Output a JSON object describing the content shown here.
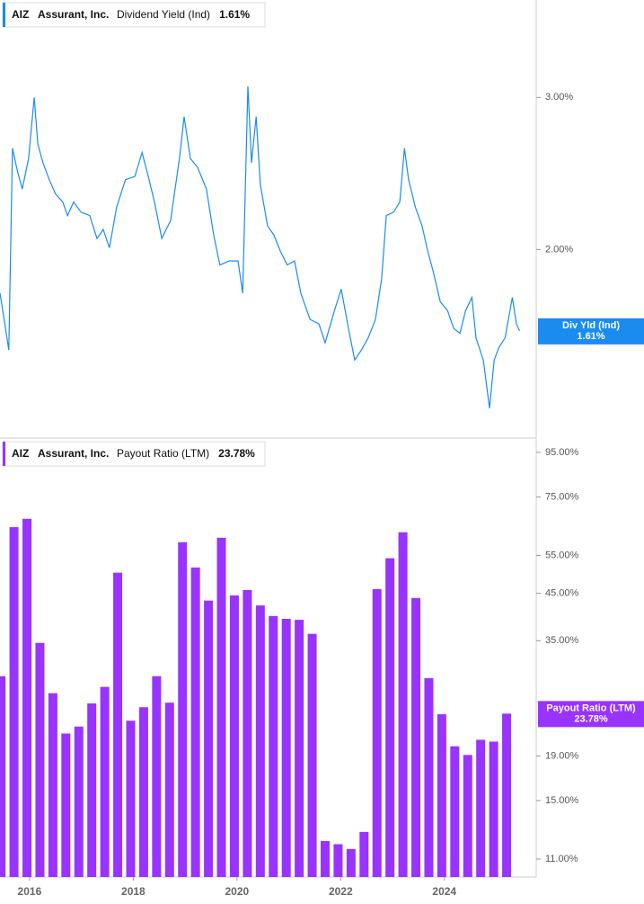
{
  "chart_data": [
    {
      "type": "line",
      "ticker": "AIZ",
      "company": "Assurant, Inc.",
      "current_label": "1.61%",
      "ylog": true,
      "ylim": [
        1.21,
        3.89
      ],
      "yticks": [
        {
          "value": 3,
          "label": "3.00%"
        },
        {
          "value": 2,
          "label": "2.00%"
        }
      ],
      "xlim": [
        2015.43,
        2025.84
      ],
      "series": [
        {
          "name": "Dividend Yield (Ind)",
          "short_name": "Div Yld (Ind)",
          "color": "#1a8cf0",
          "x": [
            2015.43,
            2015.51,
            2015.6,
            2015.67,
            2015.77,
            2015.86,
            2015.98,
            2016.09,
            2016.16,
            2016.26,
            2016.38,
            2016.5,
            2016.64,
            2016.73,
            2016.85,
            2016.99,
            2017.16,
            2017.3,
            2017.42,
            2017.54,
            2017.68,
            2017.85,
            2018.03,
            2018.17,
            2018.29,
            2018.41,
            2018.55,
            2018.72,
            2018.89,
            2018.98,
            2019.1,
            2019.24,
            2019.41,
            2019.55,
            2019.67,
            2019.85,
            2020.02,
            2020.11,
            2020.21,
            2020.28,
            2020.37,
            2020.45,
            2020.59,
            2020.71,
            2020.84,
            2020.97,
            2021.11,
            2021.23,
            2021.41,
            2021.58,
            2021.7,
            2021.88,
            2022.01,
            2022.15,
            2022.27,
            2022.4,
            2022.53,
            2022.67,
            2022.79,
            2022.88,
            2023.02,
            2023.14,
            2023.23,
            2023.31,
            2023.44,
            2023.57,
            2023.68,
            2023.78,
            2023.92,
            2024.06,
            2024.18,
            2024.3,
            2024.41,
            2024.53,
            2024.61,
            2024.75,
            2024.87,
            2024.96,
            2025.05,
            2025.17,
            2025.31,
            2025.39,
            2025.45
          ],
          "values": [
            1.78,
            1.66,
            1.53,
            2.62,
            2.46,
            2.35,
            2.55,
            3.0,
            2.65,
            2.52,
            2.41,
            2.32,
            2.27,
            2.19,
            2.27,
            2.21,
            2.19,
            2.06,
            2.11,
            2.01,
            2.24,
            2.41,
            2.43,
            2.59,
            2.43,
            2.27,
            2.06,
            2.16,
            2.55,
            2.85,
            2.55,
            2.49,
            2.35,
            2.08,
            1.92,
            1.94,
            1.94,
            1.78,
            3.09,
            2.52,
            2.85,
            2.38,
            2.13,
            2.08,
            1.99,
            1.92,
            1.94,
            1.78,
            1.66,
            1.64,
            1.56,
            1.7,
            1.8,
            1.62,
            1.49,
            1.53,
            1.58,
            1.66,
            1.85,
            2.19,
            2.21,
            2.27,
            2.62,
            2.41,
            2.24,
            2.13,
            1.99,
            1.89,
            1.74,
            1.7,
            1.62,
            1.6,
            1.7,
            1.76,
            1.58,
            1.49,
            1.31,
            1.49,
            1.54,
            1.58,
            1.76,
            1.64,
            1.61
          ]
        }
      ]
    },
    {
      "type": "bar",
      "ticker": "AIZ",
      "company": "Assurant, Inc.",
      "current_label": "23.78%",
      "ylog": true,
      "ylim": [
        10,
        102
      ],
      "yticks": [
        {
          "value": 95,
          "label": "95.00%"
        },
        {
          "value": 75,
          "label": "75.00%"
        },
        {
          "value": 55,
          "label": "55.00%"
        },
        {
          "value": 45,
          "label": "45.00%"
        },
        {
          "value": 35,
          "label": "35.00%"
        },
        {
          "value": 19,
          "label": "19.00%"
        },
        {
          "value": 15,
          "label": "15.00%"
        },
        {
          "value": 11,
          "label": "11.00%"
        }
      ],
      "xlim": [
        2015.43,
        2025.84
      ],
      "xticks": [
        2016,
        2018,
        2020,
        2022,
        2024
      ],
      "series": [
        {
          "name": "Payout Ratio (LTM)",
          "short_name": "Payout Ratio (LTM)",
          "color": "#9933ff",
          "x": [
            2015.45,
            2015.7,
            2015.95,
            2016.2,
            2016.45,
            2016.7,
            2016.95,
            2017.2,
            2017.45,
            2017.7,
            2017.95,
            2018.2,
            2018.45,
            2018.7,
            2018.95,
            2019.2,
            2019.45,
            2019.7,
            2019.95,
            2020.2,
            2020.45,
            2020.7,
            2020.95,
            2021.2,
            2021.45,
            2021.7,
            2021.95,
            2022.2,
            2022.45,
            2022.7,
            2022.95,
            2023.2,
            2023.45,
            2023.7,
            2023.95,
            2024.2,
            2024.45,
            2024.7,
            2024.95,
            2025.2
          ],
          "values": [
            29.0,
            63.9,
            66.8,
            34.6,
            26.5,
            21.4,
            22.2,
            25.1,
            27.4,
            50.2,
            22.9,
            24.6,
            29.0,
            25.2,
            59.0,
            51.6,
            43.3,
            60.4,
            44.5,
            45.8,
            42.2,
            39.9,
            39.3,
            39.1,
            36.3,
            12.1,
            11.9,
            11.6,
            12.7,
            46.0,
            54.2,
            62.2,
            43.9,
            28.7,
            23.7,
            20.0,
            19.1,
            20.7,
            20.5,
            23.78
          ]
        }
      ]
    }
  ]
}
